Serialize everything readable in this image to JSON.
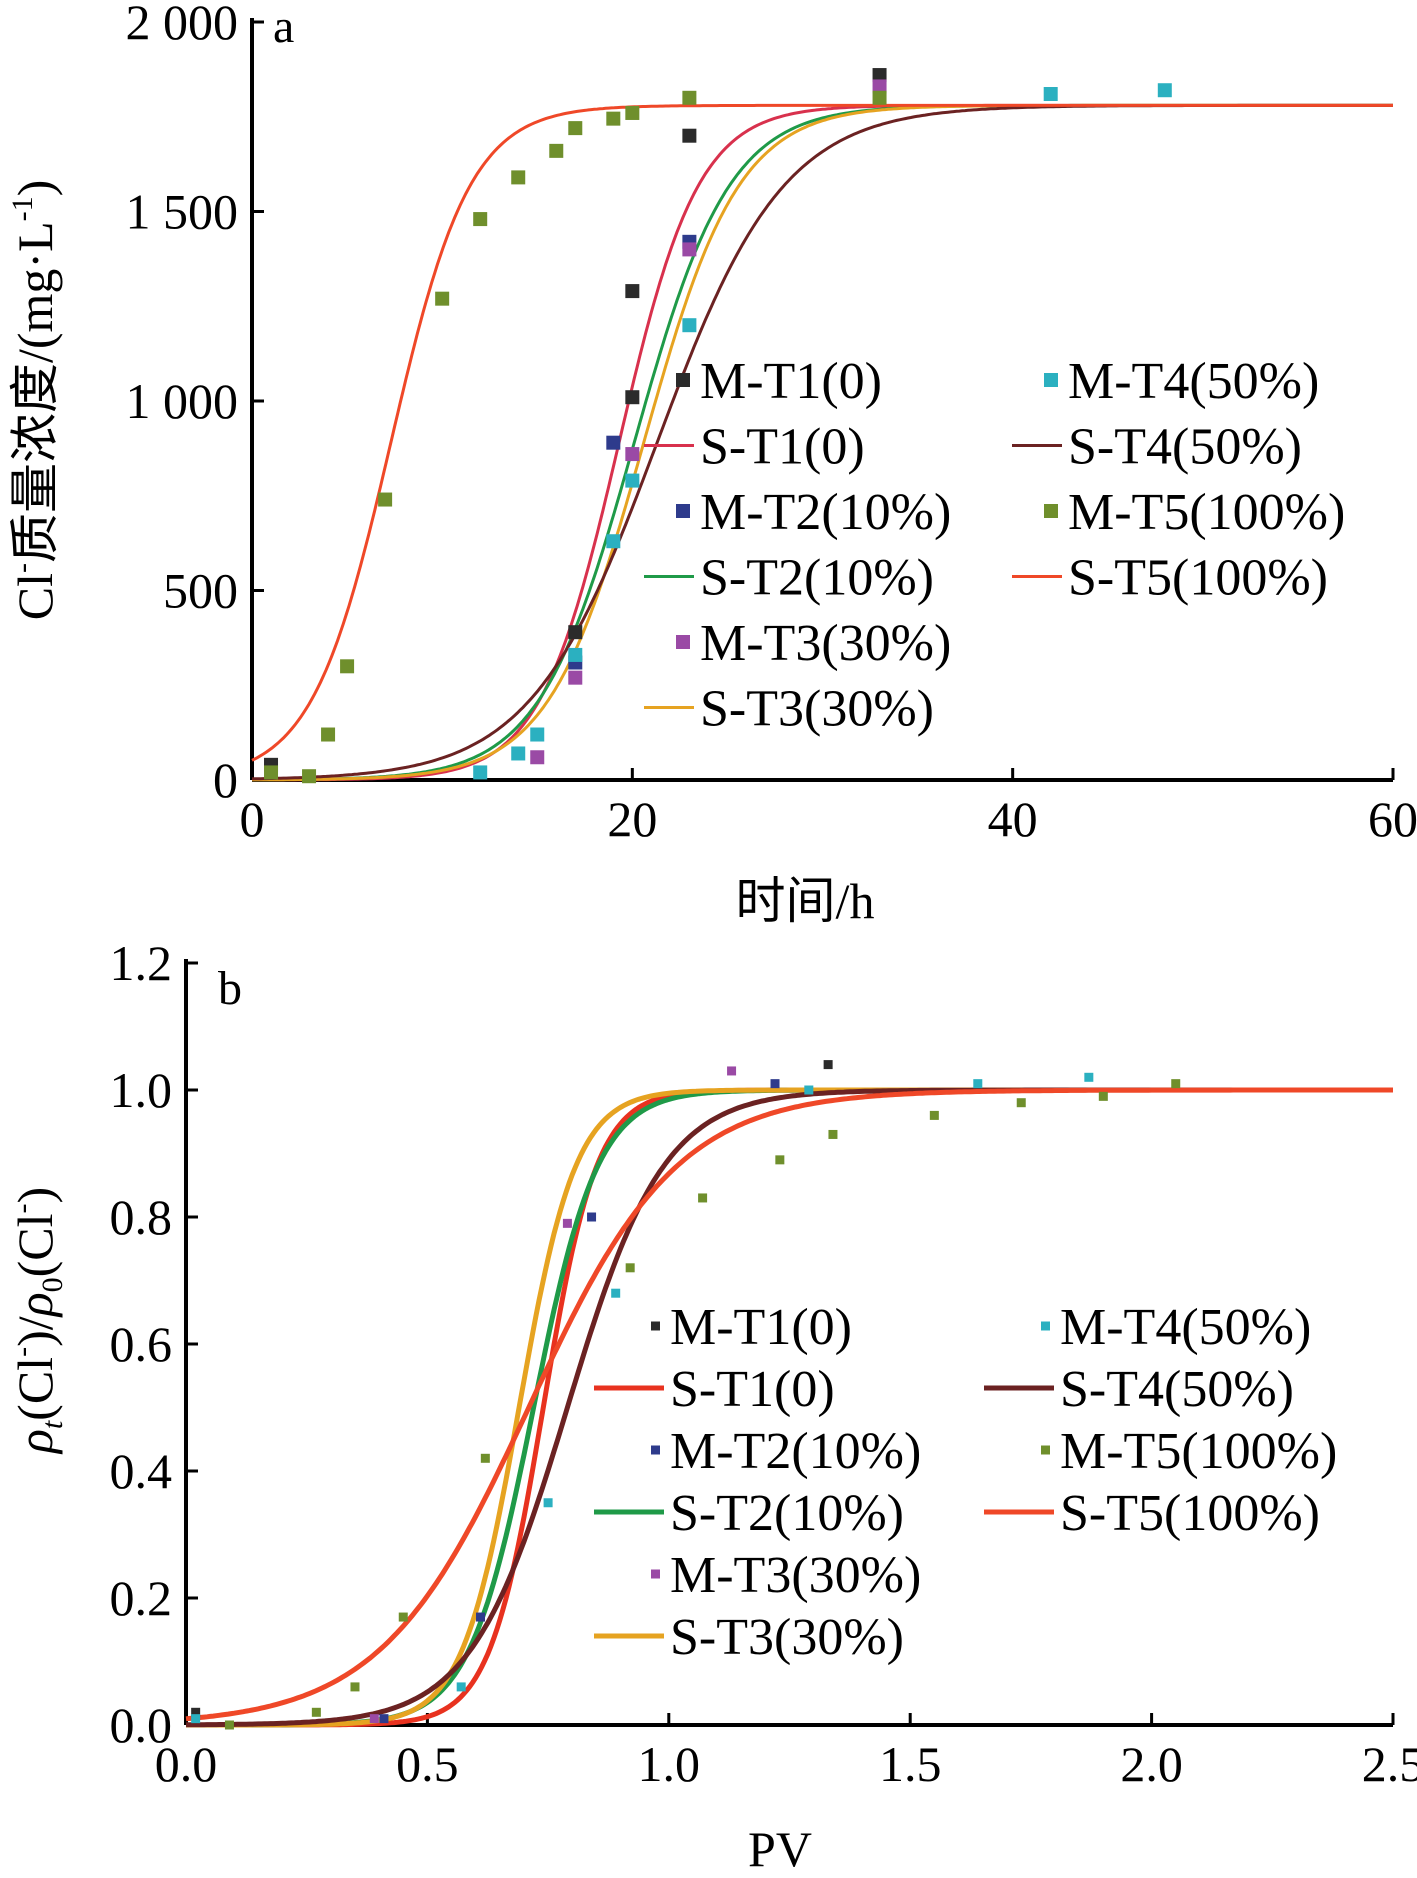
{
  "chart_data": [
    {
      "panel": "a",
      "type": "scatter",
      "xlabel": "时间/h",
      "ylabel": {
        "main": "Cl",
        "sup": "-",
        "rest": "质量浓度/(mg·L",
        "sup2": "-1",
        "end": ")"
      },
      "xlim": [
        0,
        60
      ],
      "ylim": [
        0,
        2000
      ],
      "x_ticks": [
        0,
        20,
        40,
        60
      ],
      "x_tick_labels": [
        "0",
        "20",
        "40",
        "60"
      ],
      "y_ticks": [
        0,
        500,
        1000,
        1500,
        2000
      ],
      "y_tick_labels": [
        "0",
        "500",
        "1 000",
        "1 500",
        "2 000"
      ],
      "legend_columns": [
        [
          "M-T1(0)",
          "S-T1(0)",
          "M-T2(10%)",
          "S-T2(10%)",
          "M-T3(30%)",
          "S-T3(30%)"
        ],
        [
          "M-T4(50%)",
          "S-T4(50%)",
          "M-T5(100%)",
          "S-T5(100%)"
        ]
      ],
      "series": [
        {
          "name": "M-T1(0)",
          "kind": "points",
          "color": "#2b2b2b",
          "points": [
            [
              1,
              40
            ],
            [
              17,
              390
            ],
            [
              20,
              1290
            ],
            [
              20,
              1010
            ],
            [
              23,
              1700
            ],
            [
              33,
              1860
            ]
          ]
        },
        {
          "name": "S-T1(0)",
          "kind": "curve",
          "color": "#d8314d",
          "model": {
            "A": 1780,
            "x0": 19.3,
            "k": 0.48
          }
        },
        {
          "name": "M-T2(10%)",
          "kind": "points",
          "color": "#2e3b8c",
          "points": [
            [
              17,
              310
            ],
            [
              19,
              890
            ],
            [
              23,
              1420
            ]
          ]
        },
        {
          "name": "S-T2(10%)",
          "kind": "curve",
          "color": "#1f9a48",
          "model": {
            "A": 1780,
            "x0": 20.1,
            "k": 0.4
          }
        },
        {
          "name": "M-T3(30%)",
          "kind": "points",
          "color": "#9a4aa5",
          "points": [
            [
              15,
              60
            ],
            [
              17,
              270
            ],
            [
              20,
              860
            ],
            [
              23,
              1400
            ],
            [
              33,
              1830
            ]
          ]
        },
        {
          "name": "S-T3(30%)",
          "kind": "curve",
          "color": "#e6a321",
          "model": {
            "A": 1780,
            "x0": 20.6,
            "k": 0.4
          }
        },
        {
          "name": "M-T4(50%)",
          "kind": "points",
          "color": "#2bb0c0",
          "points": [
            [
              12,
              20
            ],
            [
              14,
              70
            ],
            [
              15,
              120
            ],
            [
              17,
              330
            ],
            [
              19,
              630
            ],
            [
              20,
              790
            ],
            [
              23,
              1200
            ],
            [
              42,
              1810
            ],
            [
              48,
              1820
            ]
          ]
        },
        {
          "name": "S-T4(50%)",
          "kind": "curve",
          "color": "#6b2222",
          "model": {
            "A": 1780,
            "x0": 21.3,
            "k": 0.3
          }
        },
        {
          "name": "M-T5(100%)",
          "kind": "points",
          "color": "#6f8f2c",
          "points": [
            [
              1,
              20
            ],
            [
              3,
              10
            ],
            [
              4,
              120
            ],
            [
              5,
              300
            ],
            [
              7,
              740
            ],
            [
              10,
              1270
            ],
            [
              12,
              1480
            ],
            [
              14,
              1590
            ],
            [
              16,
              1660
            ],
            [
              17,
              1720
            ],
            [
              19,
              1745
            ],
            [
              20,
              1760
            ],
            [
              23,
              1800
            ],
            [
              33,
              1800
            ]
          ]
        },
        {
          "name": "S-T5(100%)",
          "kind": "curve",
          "color": "#ef4828",
          "model": {
            "A": 1780,
            "x0": 7.3,
            "k": 0.48
          }
        }
      ]
    },
    {
      "panel": "b",
      "type": "scatter",
      "xlabel": "PV",
      "ylabel": {
        "rho": "ρ",
        "sub_t": "t",
        "a": "(Cl",
        "sup": "-",
        "b": ")/",
        "rho2": "ρ",
        "sub_0": "0",
        "c": "(Cl",
        "sup2": "-",
        "d": ")"
      },
      "xlim": [
        0,
        2.5
      ],
      "ylim": [
        0,
        1.2
      ],
      "x_ticks": [
        0,
        0.5,
        1,
        1.5,
        2,
        2.5
      ],
      "x_tick_labels": [
        "0.0",
        "0.5",
        "1.0",
        "1.5",
        "2.0",
        "2.5"
      ],
      "y_ticks": [
        0,
        0.2,
        0.4,
        0.6,
        0.8,
        1,
        1.2
      ],
      "y_tick_labels": [
        "0.0",
        "0.2",
        "0.4",
        "0.6",
        "0.8",
        "1.0",
        "1.2"
      ],
      "legend_columns": [
        [
          "M-T1(0)",
          "S-T1(0)",
          "M-T2(10%)",
          "S-T2(10%)",
          "M-T3(30%)",
          "S-T3(30%)"
        ],
        [
          "M-T4(50%)",
          "S-T4(50%)",
          "M-T5(100%)",
          "S-T5(100%)"
        ]
      ],
      "series": [
        {
          "name": "M-T1(0)",
          "kind": "points",
          "color": "#2b2b2b",
          "points": [
            [
              0.02,
              0.02
            ],
            [
              1.33,
              1.04
            ]
          ]
        },
        {
          "name": "S-T1(0)",
          "kind": "curve",
          "color": "#e8321f",
          "model": {
            "x0": 0.74,
            "k": 18
          }
        },
        {
          "name": "M-T2(10%)",
          "kind": "points",
          "color": "#2e3b8c",
          "points": [
            [
              0.41,
              0.01
            ],
            [
              0.61,
              0.17
            ],
            [
              0.84,
              0.8
            ],
            [
              1.22,
              1.01
            ]
          ]
        },
        {
          "name": "S-T2(10%)",
          "kind": "curve",
          "color": "#1f9a48",
          "model": {
            "x0": 0.72,
            "k": 15
          }
        },
        {
          "name": "M-T3(30%)",
          "kind": "points",
          "color": "#9a4aa5",
          "points": [
            [
              0.39,
              0.01
            ],
            [
              0.79,
              0.79
            ],
            [
              1.13,
              1.03
            ]
          ]
        },
        {
          "name": "S-T3(30%)",
          "kind": "curve",
          "color": "#e6a321",
          "model": {
            "x0": 0.69,
            "k": 17
          }
        },
        {
          "name": "M-T4(50%)",
          "kind": "points",
          "color": "#2bb0c0",
          "points": [
            [
              0.02,
              0.01
            ],
            [
              0.57,
              0.06
            ],
            [
              0.75,
              0.35
            ],
            [
              0.89,
              0.68
            ],
            [
              1.29,
              1.0
            ],
            [
              1.64,
              1.01
            ],
            [
              1.87,
              1.02
            ]
          ]
        },
        {
          "name": "S-T4(50%)",
          "kind": "curve",
          "color": "#6b2222",
          "model": {
            "x0": 0.79,
            "k": 10
          }
        },
        {
          "name": "M-T5(100%)",
          "kind": "points",
          "color": "#6f8f2c",
          "points": [
            [
              0.09,
              0.0
            ],
            [
              0.27,
              0.02
            ],
            [
              0.35,
              0.06
            ],
            [
              0.45,
              0.17
            ],
            [
              0.62,
              0.42
            ],
            [
              0.92,
              0.72
            ],
            [
              1.07,
              0.83
            ],
            [
              1.23,
              0.89
            ],
            [
              1.34,
              0.93
            ],
            [
              1.55,
              0.96
            ],
            [
              1.73,
              0.98
            ],
            [
              1.9,
              0.99
            ],
            [
              2.05,
              1.01
            ]
          ]
        },
        {
          "name": "S-T5(100%)",
          "kind": "curve",
          "color": "#ef4828",
          "model": {
            "x0": 0.71,
            "k": 6.5
          }
        }
      ]
    }
  ]
}
